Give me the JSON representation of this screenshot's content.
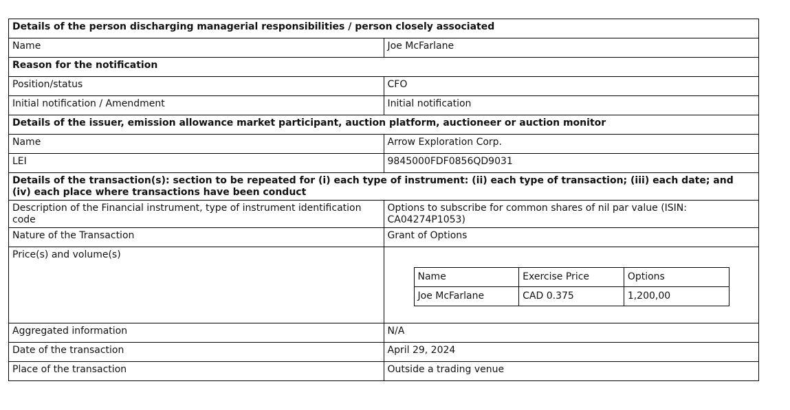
{
  "sections": {
    "pdmr": "Details of the person discharging managerial responsibilities / person closely associated",
    "reason": "Reason for the notification",
    "issuer": "Details of the issuer, emission allowance market participant, auction platform, auctioneer or auction monitor",
    "transaction": "Details of the transaction(s): section to be repeated for (i) each type of instrument: (ii) each type of transaction; (iii) each date; and (iv) each place where transactions have been conduct"
  },
  "pdmr": {
    "name_label": "Name",
    "name_value": "Joe McFarlane"
  },
  "reason": {
    "position_label": "Position/status",
    "position_value": "CFO",
    "initial_label": "Initial notification / Amendment",
    "initial_value": "Initial notification"
  },
  "issuer": {
    "name_label": "Name",
    "name_value": "Arrow Exploration Corp.",
    "lei_label": "LEI",
    "lei_value": "9845000FDF0856QD9031"
  },
  "transaction": {
    "description_label": "Description of the Financial instrument, type of instrument identification code",
    "description_value": "Options to subscribe for common shares of nil par value (ISIN: CA04274P1053)",
    "nature_label": "Nature of the Transaction",
    "nature_value": "Grant of Options",
    "price_label": "Price(s) and volume(s)",
    "price_table": {
      "headers": [
        "Name",
        "Exercise Price",
        "Options"
      ],
      "row": [
        "Joe McFarlane",
        "CAD 0.375",
        "1,200,00"
      ]
    },
    "aggregated_label": "Aggregated information",
    "aggregated_value": "N/A",
    "date_label": "Date of the transaction",
    "date_value": "April 29, 2024",
    "place_label": "Place of the transaction",
    "place_value": "Outside a trading venue"
  }
}
